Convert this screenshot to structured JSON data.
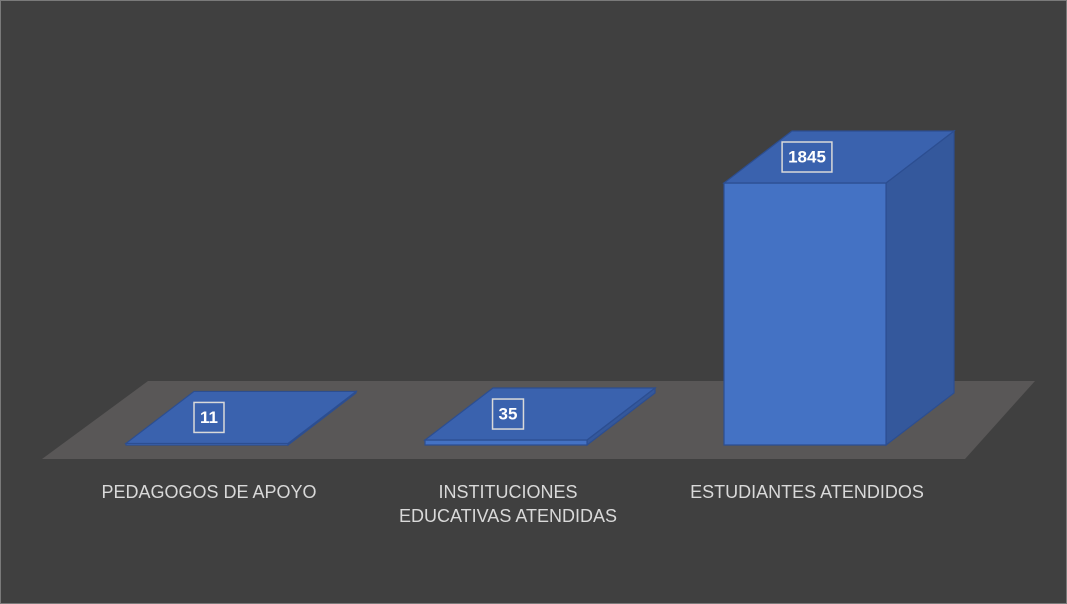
{
  "chart_data": {
    "type": "bar3d",
    "categories": [
      "PEDAGOGOS DE APOYO",
      "INSTITUCIONES EDUCATIVAS ATENDIDAS",
      "ESTUDIANTES ATENDIDOS"
    ],
    "values": [
      11,
      35,
      1845
    ],
    "color": "#4472c4"
  }
}
